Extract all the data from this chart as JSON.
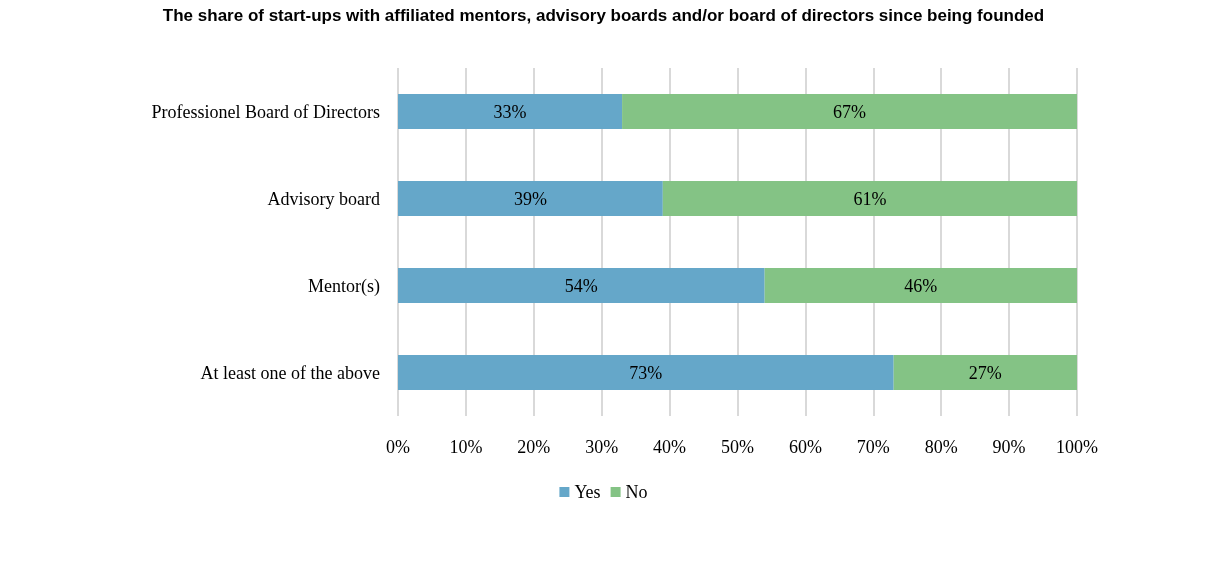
{
  "chart_data": {
    "type": "bar",
    "orientation": "horizontal",
    "stacked": true,
    "title": "The share of start-ups with affiliated mentors, advisory boards and/or board of directors since being founded",
    "categories": [
      "Professionel Board of Directors",
      "Advisory board",
      "Mentor(s)",
      "At least one of the above"
    ],
    "series": [
      {
        "name": "Yes",
        "color": "#65a7c9",
        "values": [
          33,
          39,
          54,
          73
        ],
        "value_labels": [
          "33%",
          "39%",
          "54%",
          "73%"
        ]
      },
      {
        "name": "No",
        "color": "#84c385",
        "values": [
          67,
          61,
          46,
          27
        ],
        "value_labels": [
          "67%",
          "61%",
          "46%",
          "27%"
        ]
      }
    ],
    "xlim": [
      0,
      100
    ],
    "xticks": [
      {
        "value": 0,
        "label": "0%"
      },
      {
        "value": 10,
        "label": "10%"
      },
      {
        "value": 20,
        "label": "20%"
      },
      {
        "value": 30,
        "label": "30%"
      },
      {
        "value": 40,
        "label": "40%"
      },
      {
        "value": 50,
        "label": "50%"
      },
      {
        "value": 60,
        "label": "60%"
      },
      {
        "value": 70,
        "label": "70%"
      },
      {
        "value": 80,
        "label": "80%"
      },
      {
        "value": 90,
        "label": "90%"
      },
      {
        "value": 100,
        "label": "100%"
      }
    ],
    "grid": "x",
    "legend": "bottom"
  }
}
